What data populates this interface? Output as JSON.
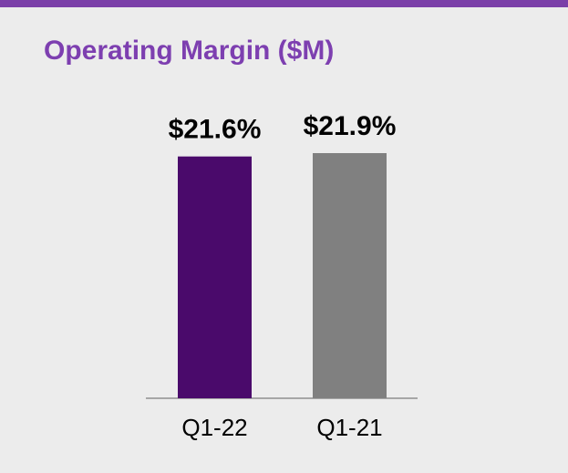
{
  "chart_data": {
    "type": "bar",
    "title": "Operating Margin ($M)",
    "categories": [
      "Q1-22",
      "Q1-21"
    ],
    "values": [
      21.6,
      21.9
    ],
    "value_labels": [
      "$21.6%",
      "$21.9%"
    ],
    "colors": [
      "#4a0a6b",
      "#808080"
    ]
  }
}
